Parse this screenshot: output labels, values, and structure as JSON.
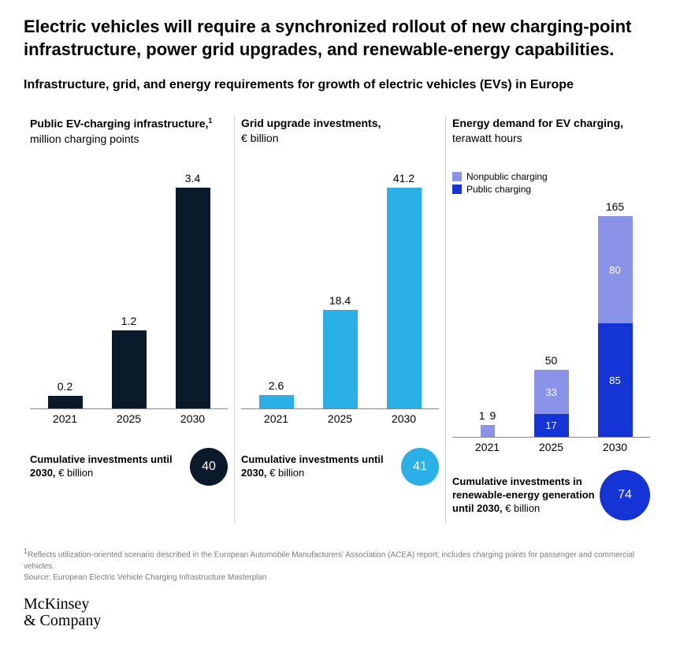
{
  "headline": "Electric vehicles will require a synchronized rollout of new charging-point infrastructure, power grid upgrades, and renewable-energy capabilities.",
  "subtitle": "Infrastructure, grid, and energy requirements for growth of electric vehicles (EVs) in Europe",
  "axis_years": [
    "2021",
    "2025",
    "2030"
  ],
  "chart_axis_max": 300,
  "panels": [
    {
      "title_bold": "Public EV-charging infrastructure,",
      "title_sup": "1",
      "title_light": "million charging points",
      "type": "bar",
      "bar_color": "#0a1a2a",
      "values": [
        0.2,
        1.2,
        3.4
      ],
      "value_labels": [
        "0.2",
        "1.2",
        "3.4"
      ],
      "scale_max": 3.4,
      "cumulative_bold": "Cumulative investments until 2030,",
      "cumulative_light": " € billion",
      "circle_value": "40",
      "circle_color": "#0a1a2a",
      "circle_diameter": 48
    },
    {
      "title_bold": "Grid upgrade investments,",
      "title_sup": "",
      "title_light": "€ billion",
      "type": "bar",
      "bar_color": "#2ab0e6",
      "values": [
        2.6,
        18.4,
        41.2
      ],
      "value_labels": [
        "2.6",
        "18.4",
        "41.2"
      ],
      "scale_max": 41.2,
      "cumulative_bold": "Cumulative investments until 2030,",
      "cumulative_light": " € billion",
      "circle_value": "41",
      "circle_color": "#2ab0e6",
      "circle_diameter": 48
    },
    {
      "title_bold": "Energy demand for EV charging,",
      "title_sup": "",
      "title_light": "terawatt hours",
      "type": "stacked",
      "legend": [
        {
          "label": "Nonpublic charging",
          "color": "#8a93e8"
        },
        {
          "label": "Public charging",
          "color": "#1434d6"
        }
      ],
      "categories": [
        "2021",
        "2025",
        "2030"
      ],
      "stacks": [
        {
          "total": 9,
          "total_width": 18,
          "total_label": "9",
          "neighbor_label": "1",
          "segments": [
            {
              "v": 0,
              "label": "",
              "color": "#1434d6"
            },
            {
              "v": 9,
              "label": "",
              "color": "#8a93e8"
            }
          ]
        },
        {
          "total": 50,
          "total_label": "50",
          "segments": [
            {
              "v": 17,
              "label": "17",
              "color": "#1434d6"
            },
            {
              "v": 33,
              "label": "33",
              "color": "#8a93e8"
            }
          ]
        },
        {
          "total": 165,
          "total_label": "165",
          "segments": [
            {
              "v": 85,
              "label": "85",
              "color": "#1434d6"
            },
            {
              "v": 80,
              "label": "80",
              "color": "#8a93e8"
            }
          ]
        }
      ],
      "scale_max": 165,
      "cumulative_bold": "Cumulative investments in renewable-energy generation until 2030,",
      "cumulative_light": " € billion",
      "circle_value": "74",
      "circle_color": "#1434d6",
      "circle_diameter": 64
    }
  ],
  "footnote1": "Reflects utilization-oriented scenario described in the European Automobile Manufacturers' Association (ACEA) report; includes charging points for passenger and commercial vehicles.",
  "source": "Source: European Electric Vehicle Charging Infrastructure Masterplan",
  "logo_line1": "McKinsey",
  "logo_line2": "& Company"
}
